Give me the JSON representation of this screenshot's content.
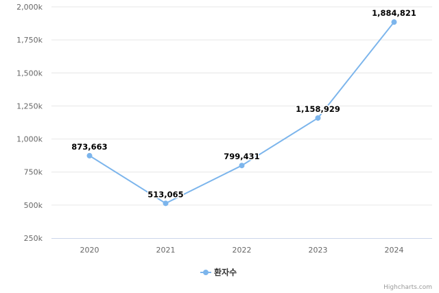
{
  "chart_data": {
    "type": "line",
    "categories": [
      "2020",
      "2021",
      "2022",
      "2023",
      "2024"
    ],
    "series": [
      {
        "name": "환자수",
        "values": [
          873663,
          513065,
          799431,
          1158929,
          1884821
        ],
        "color": "#7cb5ec"
      }
    ],
    "data_labels": [
      "873,663",
      "513,065",
      "799,431",
      "1,158,929",
      "1,884,821"
    ],
    "yticks": [
      250,
      500,
      750,
      1000,
      1250,
      1500,
      1750,
      2000
    ],
    "ytick_labels": [
      "250k",
      "500k",
      "750k",
      "1,000k",
      "1,250k",
      "1,500k",
      "1,750k",
      "2,000k"
    ],
    "ylim": [
      250000,
      2000000
    ],
    "grid": true,
    "legend": "bottom-center",
    "title": "",
    "xlabel": "",
    "ylabel": ""
  },
  "credits": "Highcharts.com"
}
